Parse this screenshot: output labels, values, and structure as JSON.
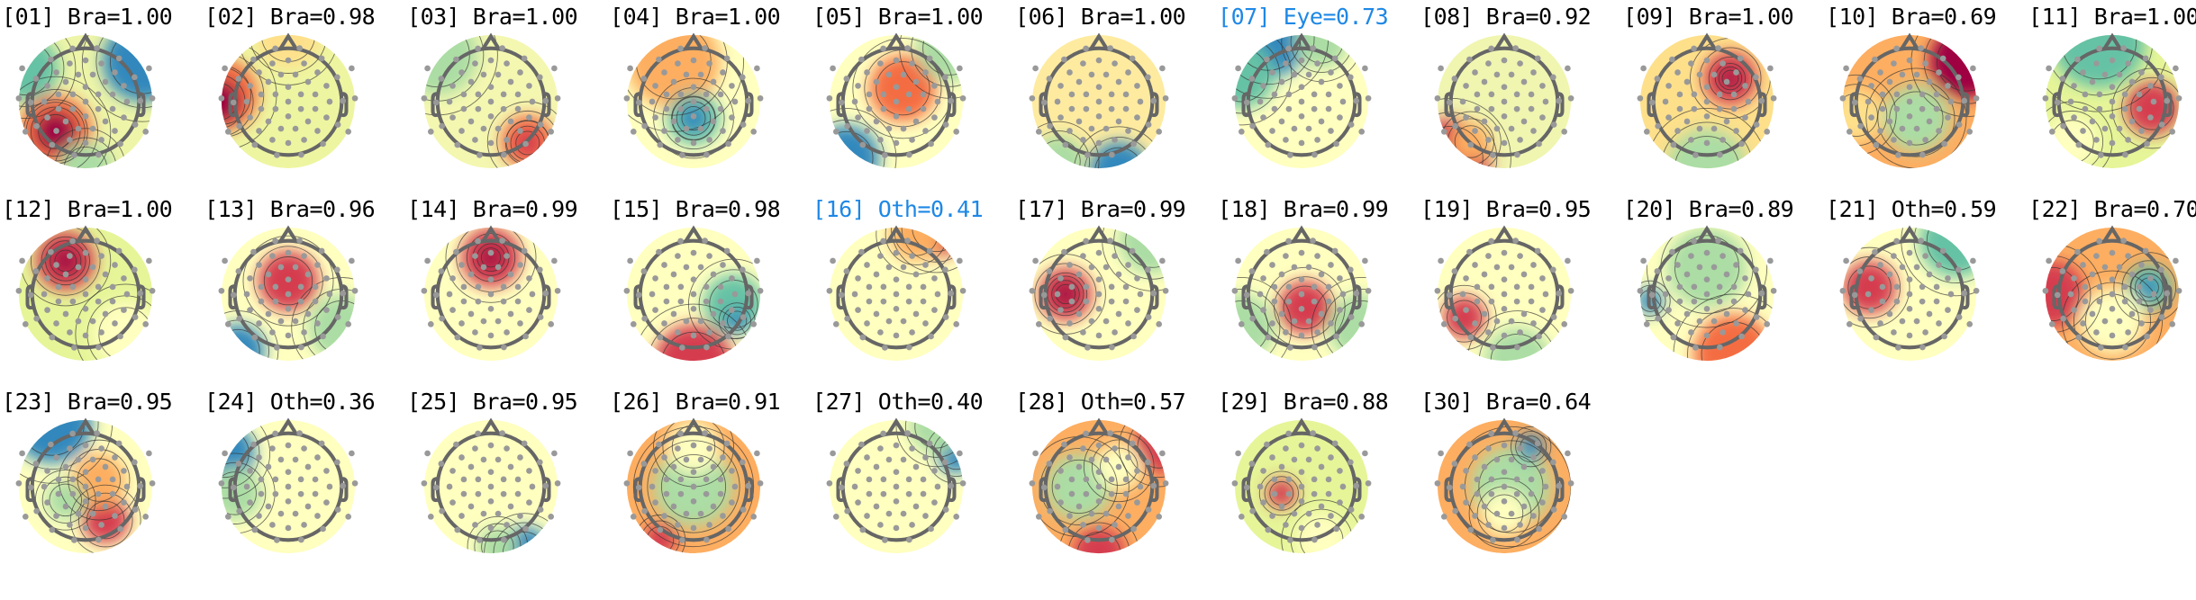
{
  "chart_data": {
    "type": "topomap-grid",
    "title": "",
    "colormap": "Spectral_r",
    "label_color_default": "#000000",
    "label_color_excluded": "#1e88e5",
    "components": [
      {
        "index": "01",
        "label": "Bra",
        "score": "1.00",
        "excluded": false
      },
      {
        "index": "02",
        "label": "Bra",
        "score": "0.98",
        "excluded": false
      },
      {
        "index": "03",
        "label": "Bra",
        "score": "1.00",
        "excluded": false
      },
      {
        "index": "04",
        "label": "Bra",
        "score": "1.00",
        "excluded": false
      },
      {
        "index": "05",
        "label": "Bra",
        "score": "1.00",
        "excluded": false
      },
      {
        "index": "06",
        "label": "Bra",
        "score": "1.00",
        "excluded": false
      },
      {
        "index": "07",
        "label": "Eye",
        "score": "0.73",
        "excluded": true
      },
      {
        "index": "08",
        "label": "Bra",
        "score": "0.92",
        "excluded": false
      },
      {
        "index": "09",
        "label": "Bra",
        "score": "1.00",
        "excluded": false
      },
      {
        "index": "10",
        "label": "Bra",
        "score": "0.69",
        "excluded": false
      },
      {
        "index": "11",
        "label": "Bra",
        "score": "1.00",
        "excluded": false
      },
      {
        "index": "12",
        "label": "Bra",
        "score": "1.00",
        "excluded": false
      },
      {
        "index": "13",
        "label": "Bra",
        "score": "0.96",
        "excluded": false
      },
      {
        "index": "14",
        "label": "Bra",
        "score": "0.99",
        "excluded": false
      },
      {
        "index": "15",
        "label": "Bra",
        "score": "0.98",
        "excluded": false
      },
      {
        "index": "16",
        "label": "Oth",
        "score": "0.41",
        "excluded": true
      },
      {
        "index": "17",
        "label": "Bra",
        "score": "0.99",
        "excluded": false
      },
      {
        "index": "18",
        "label": "Bra",
        "score": "0.99",
        "excluded": false
      },
      {
        "index": "19",
        "label": "Bra",
        "score": "0.95",
        "excluded": false
      },
      {
        "index": "20",
        "label": "Bra",
        "score": "0.89",
        "excluded": false
      },
      {
        "index": "21",
        "label": "Oth",
        "score": "0.59",
        "excluded": false
      },
      {
        "index": "22",
        "label": "Bra",
        "score": "0.70",
        "excluded": false
      },
      {
        "index": "23",
        "label": "Bra",
        "score": "0.95",
        "excluded": false
      },
      {
        "index": "24",
        "label": "Oth",
        "score": "0.36",
        "excluded": false
      },
      {
        "index": "25",
        "label": "Bra",
        "score": "0.95",
        "excluded": false
      },
      {
        "index": "26",
        "label": "Bra",
        "score": "0.91",
        "excluded": false
      },
      {
        "index": "27",
        "label": "Oth",
        "score": "0.40",
        "excluded": false
      },
      {
        "index": "28",
        "label": "Oth",
        "score": "0.57",
        "excluded": false
      },
      {
        "index": "29",
        "label": "Bra",
        "score": "0.88",
        "excluded": false
      },
      {
        "index": "30",
        "label": "Bra",
        "score": "0.64",
        "excluded": false
      }
    ]
  }
}
